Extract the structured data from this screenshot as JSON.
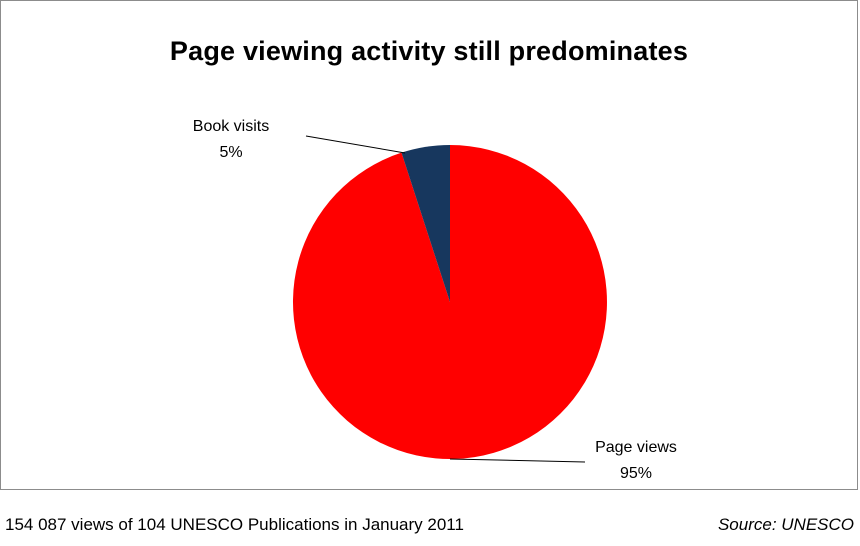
{
  "chart_data": {
    "type": "pie",
    "title": "Page viewing activity still predominates",
    "slices": [
      {
        "name": "Page views",
        "value": 95,
        "label": "95%",
        "color": "#ff0000"
      },
      {
        "name": "Book visits",
        "value": 5,
        "label": "5%",
        "color": "#17375e"
      }
    ],
    "start": "12 o'clock",
    "direction": "clockwise",
    "legend": "none"
  },
  "footnote": "154 087 views of 104 UNESCO Publications in January 2011",
  "source": "Source: UNESCO"
}
